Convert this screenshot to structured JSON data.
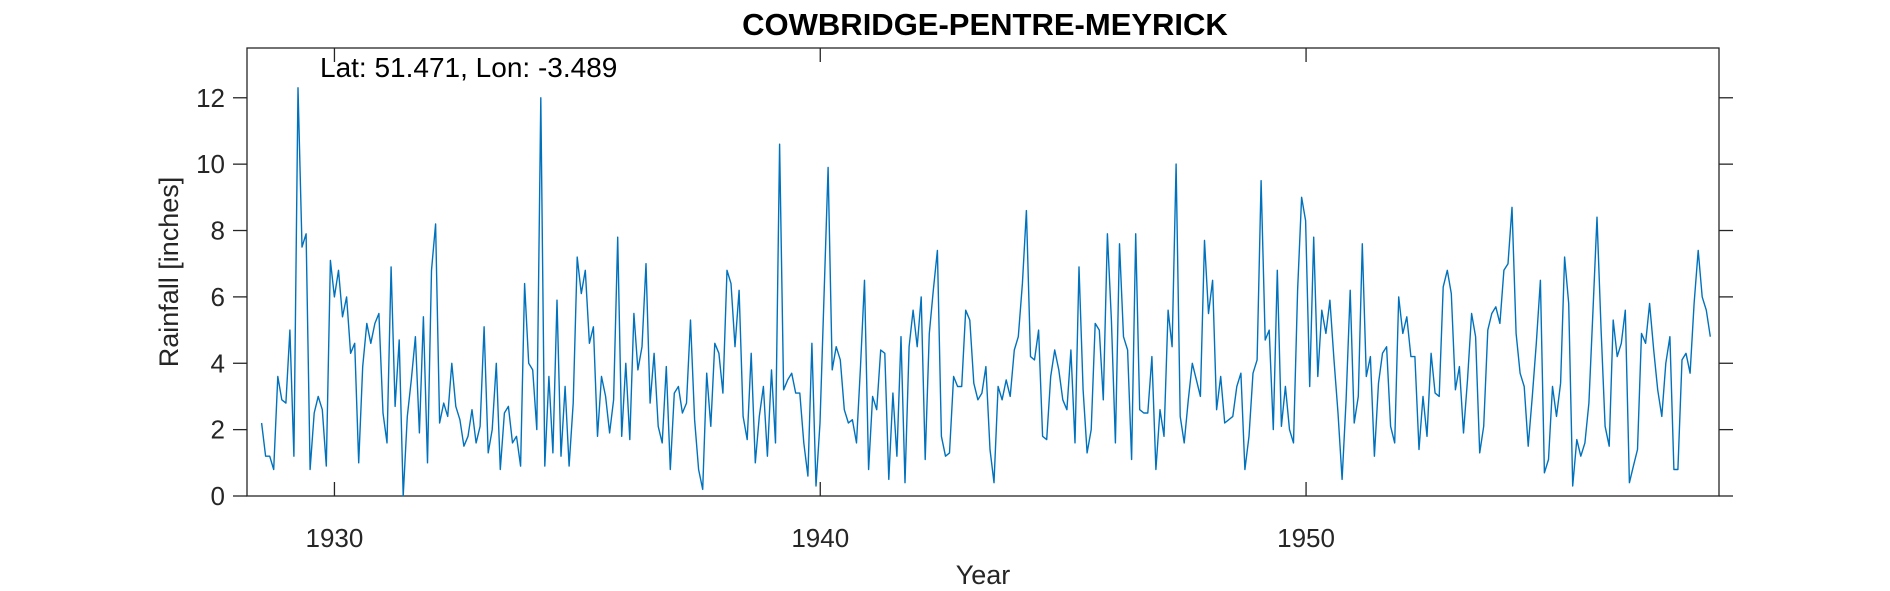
{
  "chart_data": {
    "type": "line",
    "title": "COWBRIDGE-PENTRE-MEYRICK",
    "annotation": "Lat: 51.471, Lon: -3.489",
    "xlabel": "Year",
    "ylabel": "Rainfall [inches]",
    "xlim": [
      1928.2,
      1958.5
    ],
    "ylim": [
      0,
      13.5
    ],
    "x_ticks": [
      1930,
      1940,
      1950
    ],
    "x_tick_labels": [
      "1930",
      "1940",
      "1950"
    ],
    "y_ticks": [
      0,
      2,
      4,
      6,
      8,
      10,
      12
    ],
    "y_tick_labels": [
      "0",
      "2",
      "4",
      "6",
      "8",
      "10",
      "12"
    ],
    "grid": false,
    "box": true,
    "series_color": "#0072bd",
    "start_year": 1928.5,
    "step_years": 0.0833,
    "series": [
      {
        "values": [
          2.2,
          1.2,
          1.2,
          0.8,
          3.6,
          2.9,
          2.8,
          5.0,
          1.2,
          12.3,
          7.5,
          7.9,
          0.8,
          2.5,
          3.0,
          2.6,
          0.9,
          7.1,
          6.0,
          6.8,
          5.4,
          6.0,
          4.3,
          4.6,
          1.0,
          3.9,
          5.2,
          4.6,
          5.2,
          5.5,
          2.5,
          1.6,
          6.9,
          2.7,
          4.7,
          0.0,
          2.4,
          3.5,
          4.8,
          1.9,
          5.4,
          1.0,
          6.8,
          8.2,
          2.2,
          2.8,
          2.4,
          4.0,
          2.7,
          2.3,
          1.5,
          1.8,
          2.6,
          1.6,
          2.1,
          5.1,
          1.3,
          2.0,
          4.0,
          0.8,
          2.5,
          2.7,
          1.6,
          1.8,
          0.9,
          6.4,
          4.0,
          3.8,
          2.0,
          12.0,
          0.9,
          3.6,
          1.3,
          5.9,
          1.2,
          3.3,
          0.9,
          2.8,
          7.2,
          6.1,
          6.8,
          4.6,
          5.1,
          1.8,
          3.6,
          3.0,
          1.9,
          2.9,
          7.8,
          1.8,
          4.0,
          1.7,
          5.5,
          3.8,
          4.5,
          7.0,
          2.8,
          4.3,
          2.1,
          1.6,
          3.9,
          0.8,
          3.1,
          3.3,
          2.5,
          2.8,
          5.3,
          2.3,
          0.8,
          0.2,
          3.7,
          2.1,
          4.6,
          4.3,
          3.1,
          6.8,
          6.4,
          4.5,
          6.2,
          2.4,
          1.7,
          4.3,
          1.0,
          2.4,
          3.3,
          1.2,
          3.8,
          1.6,
          10.6,
          3.2,
          3.5,
          3.7,
          3.1,
          3.1,
          1.6,
          0.6,
          4.6,
          0.3,
          2.2,
          6.1,
          9.9,
          3.8,
          4.5,
          4.1,
          2.6,
          2.2,
          2.3,
          1.6,
          3.9,
          6.5,
          0.8,
          3.0,
          2.6,
          4.4,
          4.3,
          0.5,
          3.1,
          1.2,
          4.8,
          0.4,
          4.5,
          5.6,
          4.5,
          6.0,
          1.1,
          4.9,
          6.2,
          7.4,
          1.8,
          1.2,
          1.3,
          3.6,
          3.3,
          3.3,
          5.6,
          5.3,
          3.4,
          2.9,
          3.1,
          3.9,
          1.4,
          0.4,
          3.3,
          2.9,
          3.5,
          3.0,
          4.4,
          4.8,
          6.4,
          8.6,
          4.2,
          4.1,
          5.0,
          1.8,
          1.7,
          3.6,
          4.4,
          3.8,
          2.9,
          2.6,
          4.4,
          1.6,
          6.9,
          3.2,
          1.3,
          2.0,
          5.2,
          5.0,
          2.9,
          7.9,
          5.3,
          1.6,
          7.6,
          4.8,
          4.4,
          1.1,
          7.9,
          2.6,
          2.5,
          2.5,
          4.2,
          0.8,
          2.6,
          1.8,
          5.6,
          4.5,
          10.0,
          2.4,
          1.6,
          2.9,
          4.0,
          3.5,
          3.0,
          7.7,
          5.5,
          6.5,
          2.6,
          3.6,
          2.2,
          2.3,
          2.4,
          3.3,
          3.7,
          0.8,
          1.8,
          3.7,
          4.1,
          9.5,
          4.7,
          5.0,
          2.0,
          6.8,
          2.1,
          3.3,
          2.0,
          1.6,
          6.2,
          9.0,
          8.3,
          3.3,
          7.8,
          3.6,
          5.6,
          4.9,
          5.9,
          4.1,
          2.5,
          0.5,
          2.9,
          6.2,
          2.2,
          3.0,
          7.6,
          3.6,
          4.2,
          1.2,
          3.4,
          4.3,
          4.5,
          2.1,
          1.6,
          6.0,
          4.9,
          5.4,
          4.2,
          4.2,
          1.4,
          3.0,
          1.8,
          4.3,
          3.1,
          3.0,
          6.3,
          6.8,
          6.1,
          3.2,
          3.9,
          1.9,
          3.5,
          5.5,
          4.8,
          1.3,
          2.1,
          5.0,
          5.5,
          5.7,
          5.2,
          6.8,
          7.0,
          8.7,
          4.9,
          3.7,
          3.3,
          1.5,
          3.0,
          4.6,
          6.5,
          0.7,
          1.1,
          3.3,
          2.4,
          3.4,
          7.2,
          5.8,
          0.3,
          1.7,
          1.2,
          1.6,
          2.8,
          5.6,
          8.4,
          5.0,
          2.1,
          1.5,
          5.3,
          4.2,
          4.6,
          5.6,
          0.4,
          0.9,
          1.4,
          4.9,
          4.6,
          5.8,
          4.4,
          3.2,
          2.4,
          4.0,
          4.8,
          0.8,
          0.8,
          4.1,
          4.3,
          3.7,
          5.8,
          7.4,
          6.0,
          5.6,
          4.8
        ]
      }
    ]
  }
}
